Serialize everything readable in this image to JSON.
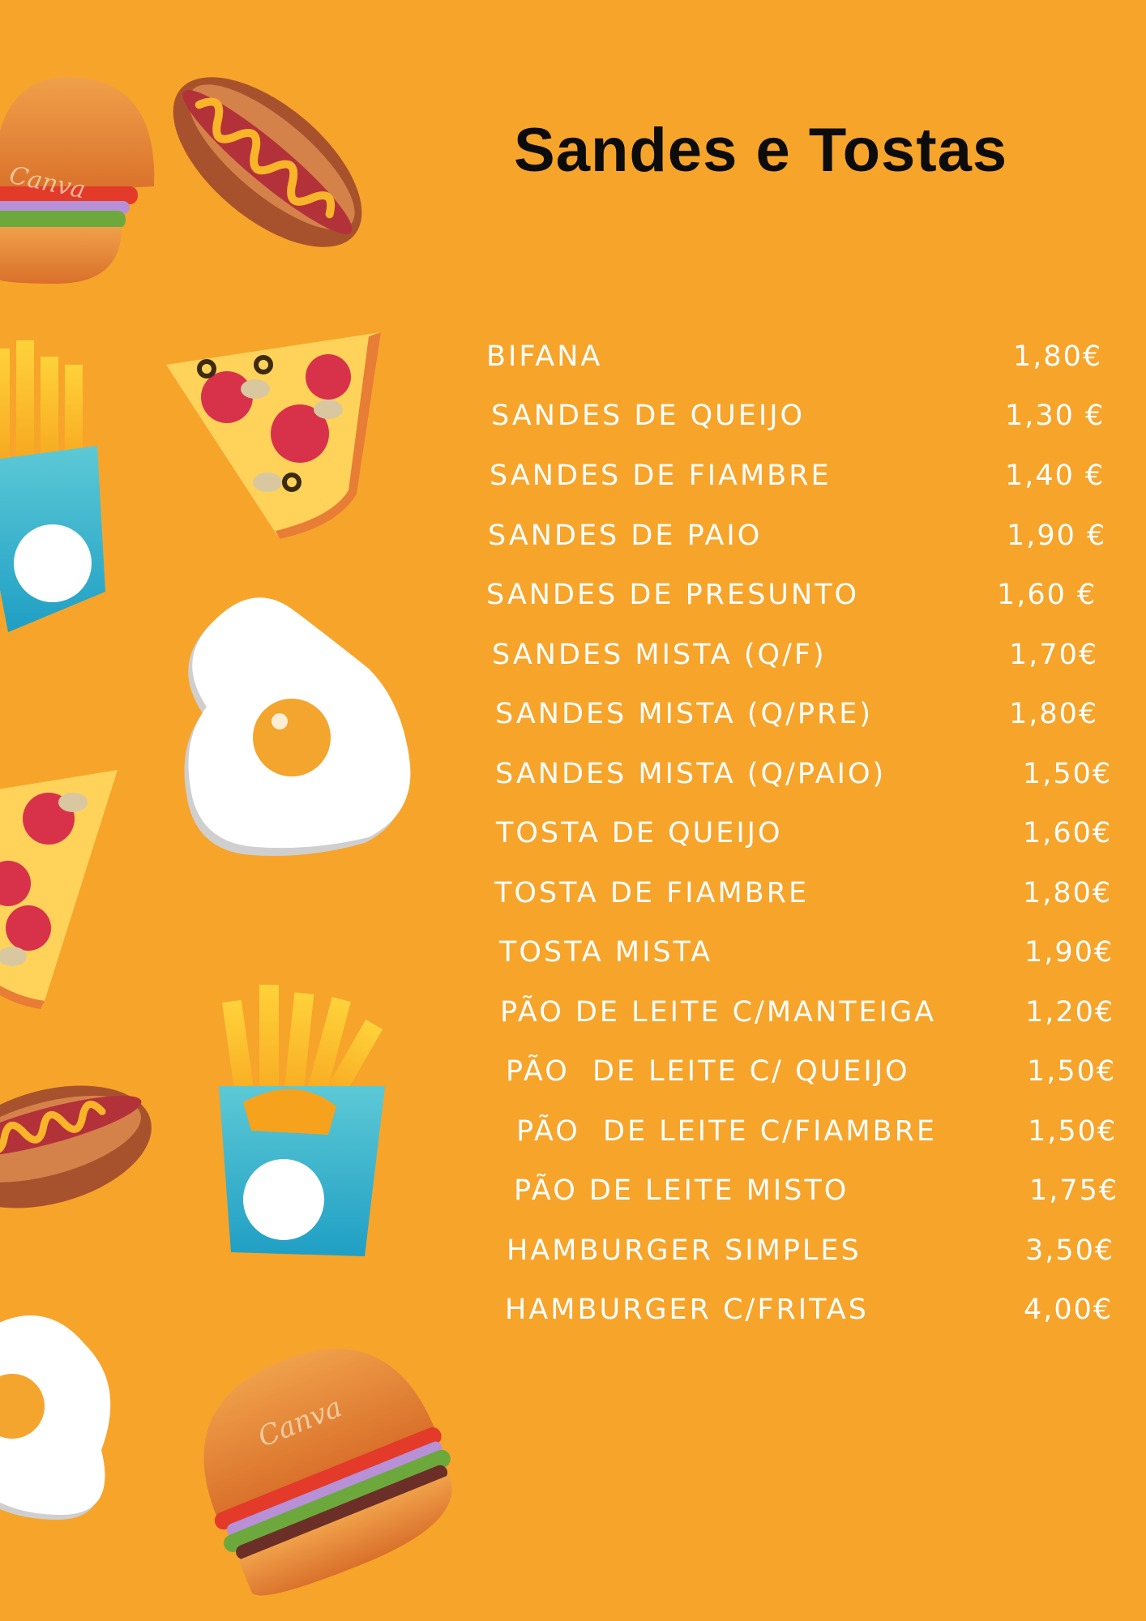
{
  "menu": {
    "title": "Sandes e Tostas",
    "items": [
      {
        "name": "BIFANA",
        "price": "1,80€"
      },
      {
        "name": "SANDES DE QUEIJO",
        "price": "1,30 €"
      },
      {
        "name": "SANDES DE FIAMBRE",
        "price": "1,40 €"
      },
      {
        "name": "SANDES DE PAIO",
        "price": "1,90 €"
      },
      {
        "name": "SANDES DE PRESUNTO",
        "price": "1,60 €"
      },
      {
        "name": "SANDES MISTA (Q/F)",
        "price": "1,70€"
      },
      {
        "name": "SANDES MISTA (Q/PRE)",
        "price": "1,80€"
      },
      {
        "name": "SANDES MISTA (Q/PAIO)",
        "price": "1,50€"
      },
      {
        "name": "TOSTA DE QUEIJO",
        "price": "1,60€"
      },
      {
        "name": "TOSTA DE FIAMBRE",
        "price": "1,80€"
      },
      {
        "name": "TOSTA MISTA",
        "price": "1,90€"
      },
      {
        "name": "PÃO DE LEITE C/MANTEIGA",
        "price": "1,20€"
      },
      {
        "name": "PÃO  DE LEITE C/ QUEIJO",
        "price": "1,50€"
      },
      {
        "name": "PÃO  DE LEITE C/FIAMBRE",
        "price": "1,50€"
      },
      {
        "name": "PÃO DE LEITE MISTO",
        "price": "1,75€"
      },
      {
        "name": "HAMBURGER SIMPLES",
        "price": "3,50€"
      },
      {
        "name": "HAMBURGER C/FRITAS",
        "price": "4,00€"
      }
    ]
  },
  "illustrations": {
    "watermark": "Canva",
    "items": [
      "burger-icon",
      "hotdog-icon",
      "fries-icon",
      "pizza-slice-icon",
      "fried-egg-icon"
    ]
  },
  "colors": {
    "background": "#F7A42B",
    "title": "#0c0c0c",
    "text": "#ffffff"
  }
}
